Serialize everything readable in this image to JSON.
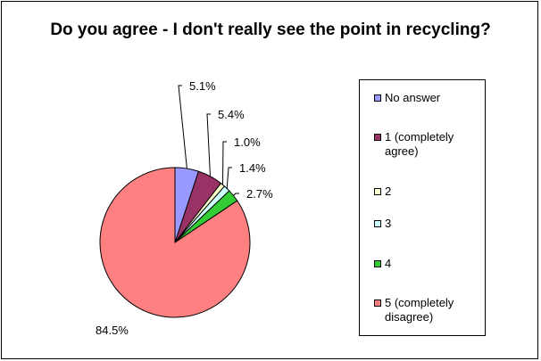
{
  "chart_data": {
    "type": "pie",
    "title": "Do you agree - I don't really see the point in recycling?",
    "slices": [
      {
        "label": "No answer",
        "value": 5.1,
        "value_label": "5.1%",
        "color": "#9999ff"
      },
      {
        "label": "1 (completely agree)",
        "value": 5.4,
        "value_label": "5.4%",
        "color": "#993366"
      },
      {
        "label": "2",
        "value": 1.0,
        "value_label": "1.0%",
        "color": "#ffffcc"
      },
      {
        "label": "3",
        "value": 1.4,
        "value_label": "1.4%",
        "color": "#ccffff"
      },
      {
        "label": "4",
        "value": 2.7,
        "value_label": "2.7%",
        "color": "#33cc33"
      },
      {
        "label": "5 (completely disagree)",
        "value": 84.5,
        "value_label": "84.5%",
        "color": "#ff8080"
      }
    ],
    "start_angle_deg": 0,
    "direction": "clockwise",
    "legend_position": "right"
  }
}
